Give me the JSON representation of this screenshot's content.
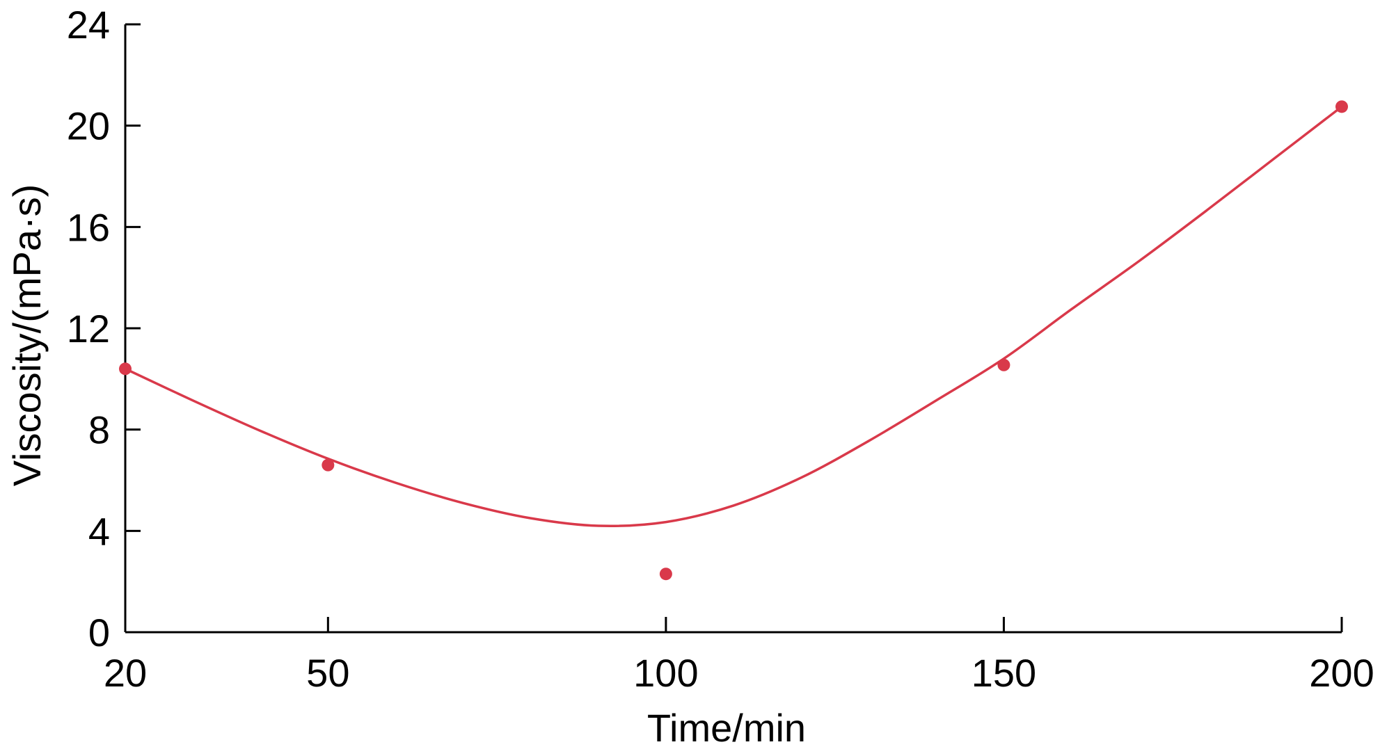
{
  "chart_data": {
    "type": "scatter",
    "title": "",
    "xlabel": "Time/min",
    "ylabel": "Viscosity/(mPa·s)",
    "x_ticks": [
      20,
      50,
      100,
      150,
      200
    ],
    "y_ticks": [
      0,
      4,
      8,
      12,
      16,
      20,
      24
    ],
    "xlim": [
      20,
      200
    ],
    "ylim": [
      0,
      24
    ],
    "grid": false,
    "legend": "none",
    "series": [
      {
        "x": [
          20,
          50,
          100,
          150,
          200
        ],
        "y": [
          10.4,
          6.6,
          2.3,
          10.55,
          20.75
        ],
        "color": "#d9394a"
      }
    ],
    "fit_curve": {
      "color": "#d9394a",
      "x": [
        20,
        30,
        40,
        50,
        60,
        70,
        80,
        90,
        100,
        110,
        120,
        130,
        140,
        150,
        160,
        170,
        180,
        190,
        200
      ],
      "y": [
        10.4,
        9.15,
        7.95,
        6.85,
        5.9,
        5.1,
        4.5,
        4.2,
        4.35,
        5.0,
        6.1,
        7.55,
        9.15,
        10.8,
        12.75,
        14.65,
        16.65,
        18.7,
        20.75
      ]
    }
  }
}
